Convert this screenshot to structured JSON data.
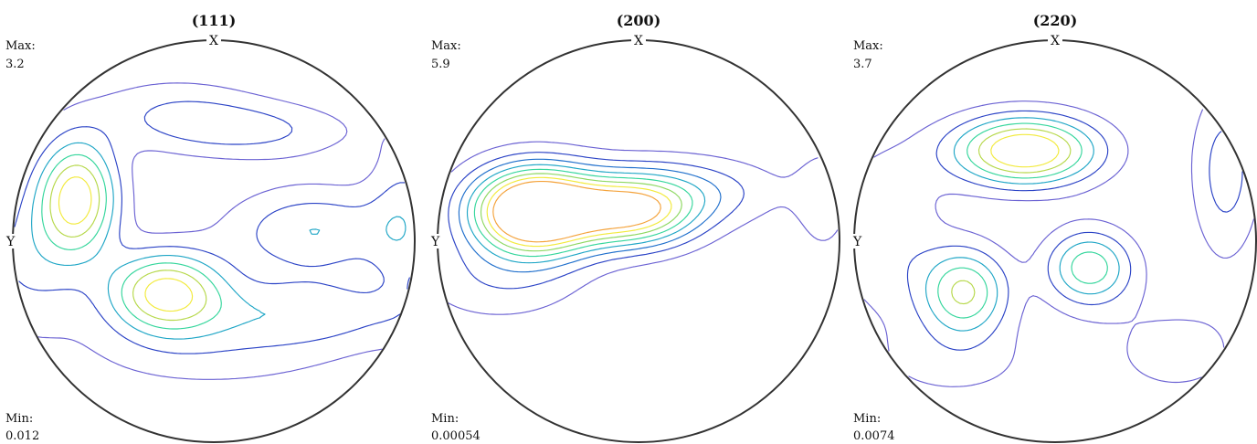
{
  "chart_data": [
    {
      "type": "contour",
      "title": "(111)",
      "top_label": "X",
      "left_label": "Y",
      "max_label": "Max:",
      "max_value": "3.2",
      "min_label": "Min:",
      "min_value": "0.012",
      "levels": [
        0.5,
        1.0,
        1.5,
        2.0,
        2.5,
        3.0
      ],
      "level_colors": [
        "#6b62d3",
        "#2b43c6",
        "#1fa6c6",
        "#35d69c",
        "#b6d84a",
        "#f2ea3c",
        "#e8623a"
      ],
      "peaks": [
        {
          "x": -0.68,
          "y": 0.22,
          "value": 3.2,
          "sx": 0.14,
          "sy": 0.2
        },
        {
          "x": -0.24,
          "y": -0.25,
          "value": 3.1,
          "sx": 0.2,
          "sy": 0.14
        },
        {
          "x": 0.2,
          "y": 0.55,
          "value": 1.0,
          "sx": 0.35,
          "sy": 0.1
        },
        {
          "x": -0.2,
          "y": 0.65,
          "value": 0.8,
          "sx": 0.3,
          "sy": 0.12
        },
        {
          "x": 0.5,
          "y": 0.05,
          "value": 1.45,
          "sx": 0.3,
          "sy": 0.15
        },
        {
          "x": 0.45,
          "y": -0.35,
          "value": 1.2,
          "sx": 0.4,
          "sy": 0.12
        },
        {
          "x": -0.92,
          "y": -0.1,
          "value": 1.0,
          "sx": 0.2,
          "sy": 0.25
        },
        {
          "x": 0.95,
          "y": 0.1,
          "value": 1.0,
          "sx": 0.12,
          "sy": 0.3
        },
        {
          "x": 0.0,
          "y": -0.55,
          "value": 0.65,
          "sx": 0.5,
          "sy": 0.15
        }
      ]
    },
    {
      "type": "contour",
      "title": "(200)",
      "top_label": "X",
      "left_label": "Y",
      "max_label": "Max:",
      "max_value": "5.9",
      "min_label": "Min:",
      "min_value": "0.00054",
      "levels": [
        0.5,
        1.0,
        1.5,
        2.0,
        2.5,
        3.0,
        3.5,
        4.0
      ],
      "level_colors": [
        "#6b62d3",
        "#2b43c6",
        "#1f6fcc",
        "#1fa6c6",
        "#35d69c",
        "#8ed862",
        "#f2ea3c",
        "#f4a23a",
        "#e8623a"
      ],
      "peaks": [
        {
          "x": -0.52,
          "y": 0.15,
          "value": 5.9,
          "sx": 0.22,
          "sy": 0.15
        },
        {
          "x": -0.03,
          "y": 0.14,
          "value": 3.6,
          "sx": 0.22,
          "sy": 0.12
        },
        {
          "x": 0.2,
          "y": 0.25,
          "value": 1.3,
          "sx": 0.35,
          "sy": 0.12
        },
        {
          "x": -0.7,
          "y": -0.2,
          "value": 0.8,
          "sx": 0.3,
          "sy": 0.15
        },
        {
          "x": 0.92,
          "y": 0.2,
          "value": 0.7,
          "sx": 0.1,
          "sy": 0.2
        }
      ]
    },
    {
      "type": "contour",
      "title": "(220)",
      "top_label": "X",
      "left_label": "Y",
      "max_label": "Max:",
      "max_value": "3.7",
      "min_label": "Min:",
      "min_value": "0.0074",
      "levels": [
        0.5,
        1.0,
        1.5,
        2.0,
        2.5,
        3.0
      ],
      "level_colors": [
        "#6b62d3",
        "#2b43c6",
        "#1fa6c6",
        "#35d69c",
        "#b6d84a",
        "#f2ea3c",
        "#e8623a"
      ],
      "peaks": [
        {
          "x": -0.15,
          "y": 0.45,
          "value": 3.7,
          "sx": 0.25,
          "sy": 0.12
        },
        {
          "x": -0.45,
          "y": -0.25,
          "value": 2.5,
          "sx": 0.15,
          "sy": 0.15
        },
        {
          "x": 0.17,
          "y": -0.13,
          "value": 2.3,
          "sx": 0.15,
          "sy": 0.13
        },
        {
          "x": 0.85,
          "y": 0.35,
          "value": 1.2,
          "sx": 0.12,
          "sy": 0.3
        },
        {
          "x": -0.85,
          "y": 0.05,
          "value": 0.9,
          "sx": 0.2,
          "sy": 0.3
        },
        {
          "x": 0.6,
          "y": -0.55,
          "value": 0.6,
          "sx": 0.3,
          "sy": 0.2
        },
        {
          "x": -0.5,
          "y": -0.6,
          "value": 0.6,
          "sx": 0.3,
          "sy": 0.15
        }
      ]
    }
  ]
}
